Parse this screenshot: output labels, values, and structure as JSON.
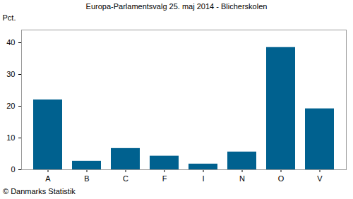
{
  "chart_data": {
    "type": "bar",
    "title": "Europa-Parlamentsvalg 25. maj 2014 - Blicherskolen",
    "y_label": "Pct.",
    "caption": "© Danmarks Statistik",
    "categories": [
      "A",
      "B",
      "C",
      "F",
      "I",
      "N",
      "O",
      "V"
    ],
    "values": [
      22.0,
      2.7,
      6.7,
      4.3,
      1.8,
      5.6,
      38.5,
      19.2
    ],
    "color": "#00618f",
    "ylim": [
      0,
      44
    ],
    "yticks": [
      0,
      10,
      20,
      30,
      40
    ],
    "grid": false
  }
}
